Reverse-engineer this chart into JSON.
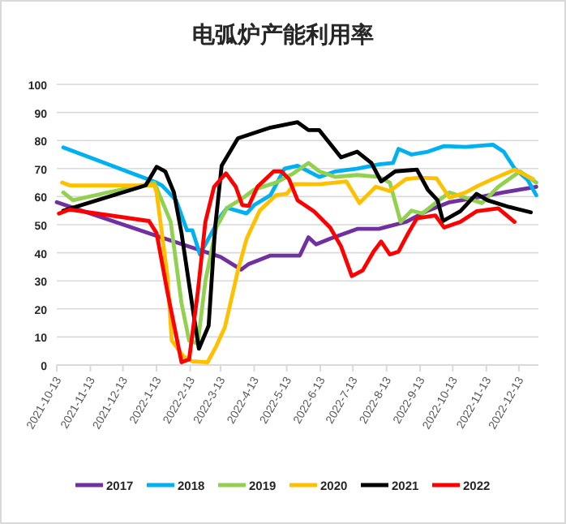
{
  "chart_data": {
    "type": "line",
    "title": "电弧炉产能利用率",
    "xlim": [
      "2021-10-13",
      "2022-12-31"
    ],
    "xticks": [
      "2021-10-13",
      "2021-11-13",
      "2021-12-13",
      "2022-1-13",
      "2022-2-13",
      "2022-3-13",
      "2022-4-13",
      "2022-5-13",
      "2022-6-13",
      "2022-7-13",
      "2022-8-13",
      "2022-9-13",
      "2022-10-13",
      "2022-11-13",
      "2022-12-13"
    ],
    "ylim": [
      0,
      100
    ],
    "yticks": [
      0,
      10,
      20,
      30,
      40,
      50,
      60,
      70,
      80,
      90,
      100
    ],
    "grid": "y",
    "legend": "bottom",
    "marker": "none",
    "line_style": "solid",
    "series": [
      {
        "name": "2017",
        "color": "#7030a0",
        "x": [
          "2021-10-13",
          "2022-01-13",
          "2022-03-13",
          "2022-04-01",
          "2022-04-08",
          "2022-04-28",
          "2022-05-25",
          "2022-06-02",
          "2022-06-09",
          "2022-06-22",
          "2022-07-17",
          "2022-08-06",
          "2022-08-31",
          "2022-09-20",
          "2022-10-10",
          "2022-11-09",
          "2022-11-29",
          "2022-12-29"
        ],
        "values": [
          58,
          46,
          38.5,
          34,
          36,
          39,
          39,
          45.5,
          43,
          45,
          48.5,
          48.5,
          51,
          55,
          58,
          60,
          61.5,
          63.5
        ]
      },
      {
        "name": "2018",
        "color": "#00b0f0",
        "x": [
          "2021-10-19",
          "2022-01-13",
          "2022-01-18",
          "2022-01-31",
          "2022-02-10",
          "2022-02-15",
          "2022-02-22",
          "2022-03-13",
          "2022-03-19",
          "2022-04-06",
          "2022-04-13",
          "2022-04-28",
          "2022-05-11",
          "2022-05-23",
          "2022-06-12",
          "2022-06-27",
          "2022-07-17",
          "2022-08-06",
          "2022-08-19",
          "2022-08-24",
          "2022-09-05",
          "2022-09-20",
          "2022-10-05",
          "2022-10-25",
          "2022-11-19",
          "2022-11-29",
          "2022-12-09",
          "2022-12-21",
          "2022-12-29"
        ],
        "values": [
          77.5,
          65,
          64,
          58.7,
          48,
          48,
          39.4,
          53,
          56,
          54,
          57,
          60.5,
          70,
          71,
          67,
          69,
          70,
          71.5,
          72,
          77,
          75,
          76,
          78,
          77.7,
          78.5,
          76,
          70,
          66,
          60.5
        ]
      },
      {
        "name": "2019",
        "color": "#92d050",
        "x": [
          "2021-10-19",
          "2021-10-28",
          "2021-11-29",
          "2022-01-11",
          "2022-01-26",
          "2022-02-05",
          "2022-02-12",
          "2022-02-20",
          "2022-02-27",
          "2022-03-09",
          "2022-03-19",
          "2022-04-03",
          "2022-04-13",
          "2022-05-03",
          "2022-05-18",
          "2022-06-02",
          "2022-06-12",
          "2022-06-27",
          "2022-07-17",
          "2022-08-06",
          "2022-08-16",
          "2022-08-26",
          "2022-09-05",
          "2022-09-15",
          "2022-09-30",
          "2022-10-10",
          "2022-11-09",
          "2022-11-24",
          "2022-12-14",
          "2022-12-29"
        ],
        "values": [
          61.5,
          58.7,
          61.5,
          65,
          51,
          22,
          8.7,
          7.7,
          30,
          49,
          56,
          59.6,
          62.5,
          65,
          68,
          72,
          69,
          67,
          67.7,
          67,
          65,
          51,
          55,
          54,
          58.6,
          61.5,
          57.7,
          63.5,
          69,
          65
        ]
      },
      {
        "name": "2020",
        "color": "#ffc000",
        "x": [
          "2021-10-18",
          "2021-10-25",
          "2022-01-11",
          "2022-01-13",
          "2022-01-23",
          "2022-01-27",
          "2022-02-07",
          "2022-02-15",
          "2022-03-01",
          "2022-03-09",
          "2022-03-17",
          "2022-03-29",
          "2022-04-06",
          "2022-04-18",
          "2022-05-03",
          "2022-05-13",
          "2022-05-20",
          "2022-06-12",
          "2022-07-07",
          "2022-07-19",
          "2022-08-03",
          "2022-08-16",
          "2022-08-31",
          "2022-09-13",
          "2022-09-28",
          "2022-10-10",
          "2022-10-25",
          "2022-11-06",
          "2022-11-19",
          "2022-12-09",
          "2022-12-26"
        ],
        "values": [
          65,
          64,
          64,
          61.5,
          31.7,
          8.7,
          3,
          1.3,
          1,
          6.7,
          13.5,
          33.7,
          45,
          55,
          60.5,
          61,
          64.5,
          64.4,
          65.4,
          57.7,
          63.5,
          62,
          66.3,
          66.7,
          66.5,
          59.6,
          61.5,
          64,
          66.3,
          69.6,
          66.3
        ]
      },
      {
        "name": "2021",
        "color": "#000000",
        "x": [
          "2021-10-19",
          "2022-01-03",
          "2022-01-13",
          "2022-01-21",
          "2022-01-29",
          "2022-02-05",
          "2022-02-15",
          "2022-02-21",
          "2022-03-02",
          "2022-03-08",
          "2022-03-14",
          "2022-03-29",
          "2022-04-28",
          "2022-05-23",
          "2022-06-02",
          "2022-06-12",
          "2022-07-02",
          "2022-07-17",
          "2022-07-30",
          "2022-08-08",
          "2022-08-21",
          "2022-09-10",
          "2022-09-20",
          "2022-09-29",
          "2022-10-04",
          "2022-10-20",
          "2022-11-04",
          "2022-11-14",
          "2022-12-04",
          "2022-12-24"
        ],
        "values": [
          55,
          64,
          70.6,
          69,
          61.5,
          47,
          21,
          5.8,
          14,
          49,
          71,
          80.8,
          84.6,
          86.5,
          83.7,
          83.7,
          74,
          76,
          72,
          65.4,
          69,
          69.6,
          62.5,
          58.7,
          51.3,
          54.8,
          61,
          58.7,
          56.3,
          54.4
        ]
      },
      {
        "name": "2022",
        "color": "#ff0000",
        "x": [
          "2021-10-15",
          "2021-10-25",
          "2022-01-06",
          "2022-01-13",
          "2022-01-23",
          "2022-02-05",
          "2022-02-12",
          "2022-02-20",
          "2022-02-27",
          "2022-03-07",
          "2022-03-18",
          "2022-03-27",
          "2022-04-02",
          "2022-04-08",
          "2022-04-16",
          "2022-05-01",
          "2022-05-08",
          "2022-05-15",
          "2022-05-23",
          "2022-06-07",
          "2022-06-22",
          "2022-07-02",
          "2022-07-12",
          "2022-07-22",
          "2022-08-01",
          "2022-08-08",
          "2022-08-16",
          "2022-08-24",
          "2022-09-02",
          "2022-09-10",
          "2022-09-27",
          "2022-10-05",
          "2022-10-20",
          "2022-11-04",
          "2022-11-24",
          "2022-12-09"
        ],
        "values": [
          54,
          55.4,
          51.3,
          47,
          26,
          1,
          2,
          26,
          51,
          63.5,
          68.3,
          63.5,
          57,
          56.7,
          63.5,
          69,
          69,
          66.3,
          58.7,
          54.8,
          49,
          42.3,
          31.7,
          33.7,
          40.4,
          44,
          39.4,
          40.4,
          47,
          52.3,
          53.3,
          49,
          51,
          54.8,
          55.8,
          51
        ]
      }
    ]
  }
}
